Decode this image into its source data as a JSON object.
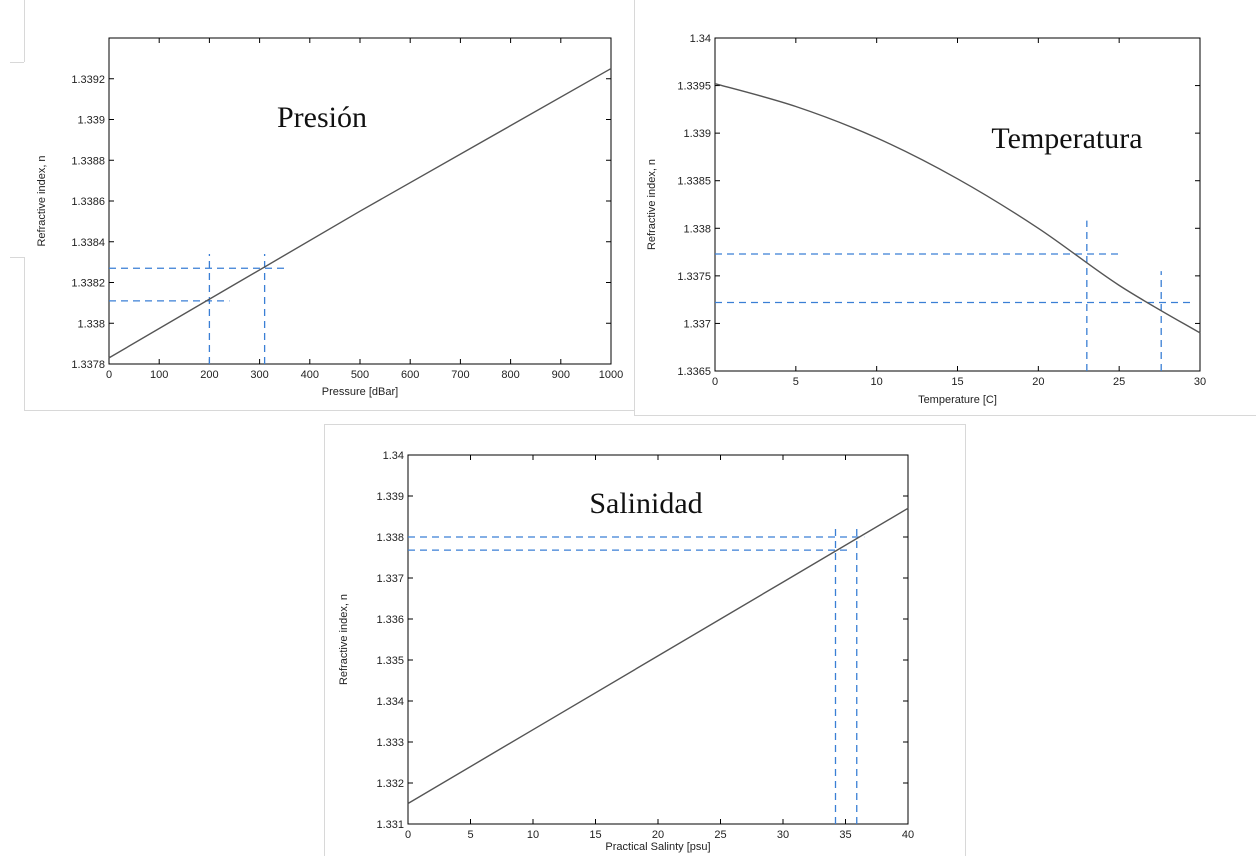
{
  "colors": {
    "curve": "#555555",
    "guide": "#3a7fd5",
    "axis": "#000000"
  },
  "chart_data": [
    {
      "type": "line",
      "title": "",
      "annotation": "Presión",
      "xlabel": "Pressure [dBar]",
      "ylabel": "Refractive index, n",
      "xlim": [
        0,
        1000
      ],
      "ylim": [
        1.3378,
        1.3394
      ],
      "xticks": [
        0,
        100,
        200,
        300,
        400,
        500,
        600,
        700,
        800,
        900,
        1000
      ],
      "xtick_labels": [
        "0",
        "100",
        "200",
        "300",
        "400",
        "500",
        "600",
        "700",
        "800",
        "900",
        "1000"
      ],
      "yticks": [
        1.3378,
        1.338,
        1.3382,
        1.3384,
        1.3386,
        1.3388,
        1.339,
        1.3392
      ],
      "ytick_labels": [
        "1.3378",
        "1.338",
        "1.3382",
        "1.3384",
        "1.3386",
        "1.3388",
        "1.339",
        "1.3392"
      ],
      "grid": false,
      "series": [
        {
          "x": [
            0,
            250,
            500,
            750,
            1000
          ],
          "y": [
            1.33783,
            1.33819,
            1.33855,
            1.3389,
            1.33925
          ]
        }
      ],
      "reference_lines": {
        "horizontal": [
          {
            "y": 1.33811,
            "x_from": 0,
            "x_to": 240
          },
          {
            "y": 1.33827,
            "x_from": 0,
            "x_to": 355
          }
        ],
        "vertical": [
          {
            "x": 200,
            "y_from": 1.3378,
            "y_to": 1.33834
          },
          {
            "x": 310,
            "y_from": 1.3378,
            "y_to": 1.33834
          }
        ]
      }
    },
    {
      "type": "line",
      "title": "",
      "annotation": "Temperatura",
      "xlabel": "Temperature [C]",
      "ylabel": "Refractive index, n",
      "xlim": [
        0,
        30
      ],
      "ylim": [
        1.3365,
        1.34
      ],
      "xticks": [
        0,
        5,
        10,
        15,
        20,
        25,
        30
      ],
      "xtick_labels": [
        "0",
        "5",
        "10",
        "15",
        "20",
        "25",
        "30"
      ],
      "yticks": [
        1.3365,
        1.337,
        1.3375,
        1.338,
        1.3385,
        1.339,
        1.3395,
        1.34
      ],
      "ytick_labels": [
        "1.3365",
        "1.337",
        "1.3375",
        "1.338",
        "1.3385",
        "1.339",
        "1.3395",
        "1.34"
      ],
      "grid": false,
      "series": [
        {
          "x": [
            0,
            5,
            10,
            15,
            20,
            25,
            30
          ],
          "y": [
            1.33952,
            1.33928,
            1.33895,
            1.33852,
            1.338,
            1.3374,
            1.3369
          ]
        }
      ],
      "reference_lines": {
        "horizontal": [
          {
            "y": 1.33773,
            "x_from": 0,
            "x_to": 25
          },
          {
            "y": 1.33722,
            "x_from": 0,
            "x_to": 29.5
          }
        ],
        "vertical": [
          {
            "x": 23,
            "y_from": 1.3365,
            "y_to": 1.33808
          },
          {
            "x": 27.6,
            "y_from": 1.3365,
            "y_to": 1.33755
          }
        ]
      }
    },
    {
      "type": "line",
      "title": "",
      "annotation": "Salinidad",
      "xlabel": "Practical Salinty [psu]",
      "ylabel": "Refractive index, n",
      "xlim": [
        0,
        40
      ],
      "ylim": [
        1.331,
        1.34
      ],
      "xticks": [
        0,
        5,
        10,
        15,
        20,
        25,
        30,
        35,
        40
      ],
      "xtick_labels": [
        "0",
        "5",
        "10",
        "15",
        "20",
        "25",
        "30",
        "35",
        "40"
      ],
      "yticks": [
        1.331,
        1.332,
        1.333,
        1.334,
        1.335,
        1.336,
        1.337,
        1.338,
        1.339,
        1.34
      ],
      "ytick_labels": [
        "1.331",
        "1.332",
        "1.333",
        "1.334",
        "1.335",
        "1.336",
        "1.337",
        "1.338",
        "1.339",
        "1.34"
      ],
      "grid": false,
      "series": [
        {
          "x": [
            0,
            10,
            20,
            30,
            40
          ],
          "y": [
            1.3315,
            1.3333,
            1.3351,
            1.3369,
            1.3387
          ]
        }
      ],
      "reference_lines": {
        "horizontal": [
          {
            "y": 1.33768,
            "x_from": 0,
            "x_to": 35.5
          },
          {
            "y": 1.338,
            "x_from": 0,
            "x_to": 36.5
          }
        ],
        "vertical": [
          {
            "x": 34.2,
            "y_from": 1.331,
            "y_to": 1.3383
          },
          {
            "x": 35.9,
            "y_from": 1.331,
            "y_to": 1.3383
          }
        ]
      }
    }
  ]
}
